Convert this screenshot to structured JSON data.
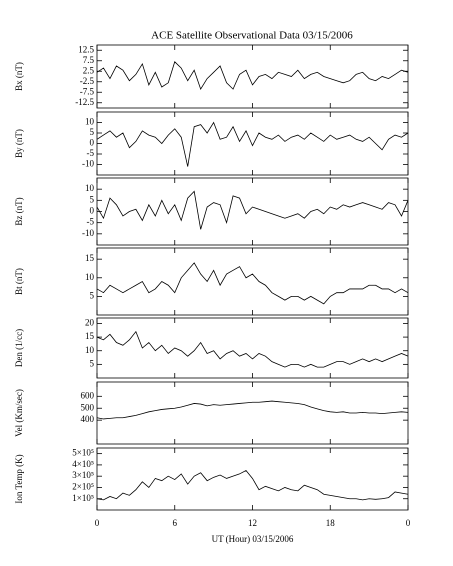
{
  "chart_data": [
    {
      "type": "line",
      "title": "ACE Satellite Observational Data   03/15/2006",
      "ylabel": "Bx (nT)",
      "color": "#000000",
      "x": [
        0,
        0.5,
        1,
        1.5,
        2,
        2.5,
        3,
        3.5,
        4,
        4.5,
        5,
        5.5,
        6,
        6.5,
        7,
        7.5,
        8,
        8.5,
        9,
        9.5,
        10,
        10.5,
        11,
        11.5,
        12,
        12.5,
        13,
        13.5,
        14,
        14.5,
        15,
        15.5,
        16,
        16.5,
        17,
        17.5,
        18,
        18.5,
        19,
        19.5,
        20,
        20.5,
        21,
        21.5,
        22,
        22.5,
        23,
        23.5,
        24
      ],
      "values": [
        2,
        4,
        -1,
        5,
        3,
        -2,
        1,
        6,
        -4,
        2,
        -5,
        -3,
        7,
        4,
        -2,
        3,
        -6,
        -1,
        2,
        5,
        -3,
        -6,
        1,
        3,
        -4,
        0,
        1,
        -1,
        2,
        1,
        0,
        3,
        -1,
        1,
        2,
        0,
        -1,
        -2,
        -3,
        -2,
        1,
        2,
        -1,
        -2,
        0,
        -1,
        1,
        3,
        2
      ],
      "xlim": [
        0,
        24
      ],
      "xticks": [
        0,
        6,
        12,
        18,
        {
          "value": 24,
          "label": "0"
        }
      ],
      "ylim": [
        -15,
        15
      ],
      "yticks": [
        -12.5,
        -7.5,
        -2.5,
        2.5,
        7.5,
        12.5
      ]
    },
    {
      "type": "line",
      "ylabel": "By (nT)",
      "color": "#000000",
      "x": [
        0,
        0.5,
        1,
        1.5,
        2,
        2.5,
        3,
        3.5,
        4,
        4.5,
        5,
        5.5,
        6,
        6.5,
        7,
        7.5,
        8,
        8.5,
        9,
        9.5,
        10,
        10.5,
        11,
        11.5,
        12,
        12.5,
        13,
        13.5,
        14,
        14.5,
        15,
        15.5,
        16,
        16.5,
        17,
        17.5,
        18,
        18.5,
        19,
        19.5,
        20,
        20.5,
        21,
        21.5,
        22,
        22.5,
        23,
        23.5,
        24
      ],
      "values": [
        2,
        4,
        6,
        3,
        5,
        -2,
        1,
        6,
        4,
        3,
        0,
        4,
        7,
        3,
        -11,
        8,
        9,
        5,
        10,
        2,
        3,
        8,
        1,
        6,
        -1,
        5,
        3,
        2,
        4,
        1,
        3,
        4,
        2,
        5,
        3,
        1,
        4,
        2,
        3,
        4,
        2,
        1,
        3,
        0,
        -3,
        2,
        4,
        3,
        5
      ],
      "xlim": [
        0,
        24
      ],
      "xticks": [
        0,
        6,
        12,
        18,
        {
          "value": 24,
          "label": "0"
        }
      ],
      "ylim": [
        -15,
        15
      ],
      "yticks": [
        -10,
        -5,
        0,
        5,
        10
      ]
    },
    {
      "type": "line",
      "ylabel": "Bz (nT)",
      "color": "#000000",
      "x": [
        0,
        0.5,
        1,
        1.5,
        2,
        2.5,
        3,
        3.5,
        4,
        4.5,
        5,
        5.5,
        6,
        6.5,
        7,
        7.5,
        8,
        8.5,
        9,
        9.5,
        10,
        10.5,
        11,
        11.5,
        12,
        12.5,
        13,
        13.5,
        14,
        14.5,
        15,
        15.5,
        16,
        16.5,
        17,
        17.5,
        18,
        18.5,
        19,
        19.5,
        20,
        20.5,
        21,
        21.5,
        22,
        22.5,
        23,
        23.5,
        24
      ],
      "values": [
        2,
        -3,
        6,
        3,
        -2,
        0,
        1,
        -4,
        3,
        -2,
        5,
        -1,
        3,
        -4,
        6,
        9,
        -8,
        2,
        4,
        3,
        -5,
        7,
        6,
        -1,
        2,
        1,
        0,
        -1,
        -2,
        -3,
        -2,
        -1,
        -3,
        0,
        1,
        -1,
        2,
        1,
        3,
        2,
        3,
        4,
        3,
        2,
        1,
        4,
        3,
        -2,
        5
      ],
      "xlim": [
        0,
        24
      ],
      "xticks": [
        0,
        6,
        12,
        18,
        {
          "value": 24,
          "label": "0"
        }
      ],
      "ylim": [
        -15,
        15
      ],
      "yticks": [
        -10,
        -5,
        0,
        5,
        10
      ]
    },
    {
      "type": "line",
      "ylabel": "Bt (nT)",
      "color": "#000000",
      "x": [
        0,
        0.5,
        1,
        1.5,
        2,
        2.5,
        3,
        3.5,
        4,
        4.5,
        5,
        5.5,
        6,
        6.5,
        7,
        7.5,
        8,
        8.5,
        9,
        9.5,
        10,
        10.5,
        11,
        11.5,
        12,
        12.5,
        13,
        13.5,
        14,
        14.5,
        15,
        15.5,
        16,
        16.5,
        17,
        17.5,
        18,
        18.5,
        19,
        19.5,
        20,
        20.5,
        21,
        21.5,
        22,
        22.5,
        23,
        23.5,
        24
      ],
      "values": [
        7,
        6,
        8,
        7,
        6,
        7,
        8,
        9,
        6,
        7,
        9,
        8,
        6,
        10,
        12,
        14,
        11,
        9,
        12,
        8,
        11,
        12,
        13,
        10,
        11,
        9,
        8,
        6,
        5,
        4,
        5,
        5,
        4,
        5,
        4,
        3,
        5,
        6,
        6,
        7,
        7,
        7,
        8,
        8,
        7,
        7,
        6,
        7,
        6
      ],
      "xlim": [
        0,
        24
      ],
      "xticks": [
        0,
        6,
        12,
        18,
        {
          "value": 24,
          "label": "0"
        }
      ],
      "ylim": [
        0,
        18
      ],
      "yticks": [
        5,
        10,
        15
      ]
    },
    {
      "type": "line",
      "ylabel": "Den (1/cc)",
      "color": "#000000",
      "x": [
        0,
        0.5,
        1,
        1.5,
        2,
        2.5,
        3,
        3.5,
        4,
        4.5,
        5,
        5.5,
        6,
        6.5,
        7,
        7.5,
        8,
        8.5,
        9,
        9.5,
        10,
        10.5,
        11,
        11.5,
        12,
        12.5,
        13,
        13.5,
        14,
        14.5,
        15,
        15.5,
        16,
        16.5,
        17,
        17.5,
        18,
        18.5,
        19,
        19.5,
        20,
        20.5,
        21,
        21.5,
        22,
        22.5,
        23,
        23.5,
        24
      ],
      "values": [
        15,
        14,
        16,
        13,
        12,
        14,
        17,
        11,
        13,
        10,
        12,
        9,
        11,
        10,
        8,
        10,
        13,
        9,
        10,
        7,
        9,
        10,
        8,
        9,
        7,
        9,
        8,
        6,
        5,
        4,
        5,
        5,
        4,
        5,
        4,
        4,
        5,
        6,
        6,
        5,
        6,
        7,
        6,
        7,
        6,
        7,
        8,
        9,
        8
      ],
      "xlim": [
        0,
        24
      ],
      "xticks": [
        0,
        6,
        12,
        18,
        {
          "value": 24,
          "label": "0"
        }
      ],
      "ylim": [
        0,
        22
      ],
      "yticks": [
        5,
        10,
        15,
        20
      ]
    },
    {
      "type": "line",
      "ylabel": "Vel (Km/sec)",
      "color": "#000000",
      "x": [
        0,
        0.5,
        1,
        1.5,
        2,
        2.5,
        3,
        3.5,
        4,
        4.5,
        5,
        5.5,
        6,
        6.5,
        7,
        7.5,
        8,
        8.5,
        9,
        9.5,
        10,
        10.5,
        11,
        11.5,
        12,
        12.5,
        13,
        13.5,
        14,
        14.5,
        15,
        15.5,
        16,
        16.5,
        17,
        17.5,
        18,
        18.5,
        19,
        19.5,
        20,
        20.5,
        21,
        21.5,
        22,
        22.5,
        23,
        23.5,
        24
      ],
      "values": [
        420,
        410,
        415,
        420,
        420,
        430,
        440,
        455,
        470,
        480,
        490,
        495,
        500,
        510,
        525,
        540,
        535,
        520,
        530,
        525,
        530,
        535,
        540,
        545,
        550,
        550,
        555,
        560,
        555,
        550,
        545,
        540,
        530,
        510,
        495,
        480,
        470,
        465,
        470,
        460,
        460,
        465,
        460,
        460,
        455,
        460,
        465,
        470,
        465
      ],
      "xlim": [
        0,
        24
      ],
      "xticks": [
        0,
        6,
        12,
        18,
        {
          "value": 24,
          "label": "0"
        }
      ],
      "ylim": [
        200,
        720
      ],
      "yticks": [
        400,
        500,
        600
      ]
    },
    {
      "type": "line",
      "ylabel": "Ion Temp (K)",
      "xlabel": "UT (Hour)   03/15/2006",
      "color": "#000000",
      "x": [
        0,
        0.5,
        1,
        1.5,
        2,
        2.5,
        3,
        3.5,
        4,
        4.5,
        5,
        5.5,
        6,
        6.5,
        7,
        7.5,
        8,
        8.5,
        9,
        9.5,
        10,
        10.5,
        11,
        11.5,
        12,
        12.5,
        13,
        13.5,
        14,
        14.5,
        15,
        15.5,
        16,
        16.5,
        17,
        17.5,
        18,
        18.5,
        19,
        19.5,
        20,
        20.5,
        21,
        21.5,
        22,
        22.5,
        23,
        23.5,
        24
      ],
      "values": [
        100000,
        90000,
        120000,
        100000,
        150000,
        130000,
        180000,
        250000,
        200000,
        280000,
        260000,
        300000,
        270000,
        320000,
        230000,
        300000,
        330000,
        260000,
        290000,
        310000,
        280000,
        300000,
        320000,
        350000,
        280000,
        180000,
        210000,
        190000,
        170000,
        200000,
        180000,
        170000,
        220000,
        200000,
        180000,
        140000,
        130000,
        120000,
        110000,
        100000,
        100000,
        90000,
        100000,
        95000,
        100000,
        110000,
        160000,
        150000,
        140000
      ],
      "xlim": [
        0,
        24
      ],
      "xticks": [
        0,
        6,
        12,
        18,
        {
          "value": 24,
          "label": "0"
        }
      ],
      "ylim": [
        0,
        550000
      ],
      "yticks": [
        {
          "value": 100000,
          "label": "1×10⁵"
        },
        {
          "value": 200000,
          "label": "2×10⁵"
        },
        {
          "value": 300000,
          "label": "3×10⁵"
        },
        {
          "value": 400000,
          "label": "4×10⁵"
        },
        {
          "value": 500000,
          "label": "5×10⁵"
        }
      ]
    }
  ]
}
